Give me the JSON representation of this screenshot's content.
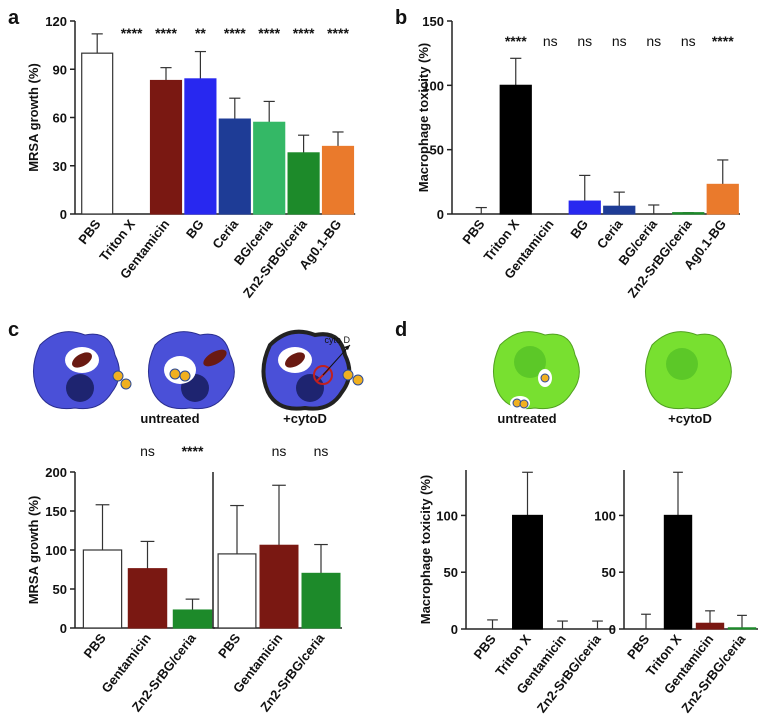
{
  "chart_data": [
    {
      "type": "bar",
      "panel": "a",
      "ylabel": "MRSA growth (%)",
      "categories": [
        "PBS",
        "Triton X",
        "Gentamicin",
        "BG",
        "Ceria",
        "BG/ceria",
        "Zn2-SrBG/ceria",
        "Ag0.1-BG"
      ],
      "values": [
        100,
        0,
        83,
        84,
        59,
        57,
        38,
        42
      ],
      "errors": [
        12,
        0,
        8,
        17,
        13,
        13,
        11,
        9
      ],
      "colors": [
        "#ffffff",
        "#000000",
        "#7a1812",
        "#2828f0",
        "#1e3c96",
        "#34b866",
        "#1d8a2a",
        "#ea7a2c"
      ],
      "annotations": [
        null,
        "****",
        "****",
        "**",
        "****",
        "****",
        "****",
        "****"
      ],
      "ylim": [
        0,
        120
      ],
      "yticks": [
        0,
        30,
        60,
        90,
        120
      ]
    },
    {
      "type": "bar",
      "panel": "b",
      "ylabel": "Macrophage toxicity (%)",
      "categories": [
        "PBS",
        "Triton X",
        "Gentamicin",
        "BG",
        "Ceria",
        "BG/ceria",
        "Zn2-SrBG/ceria",
        "Ag0.1-BG"
      ],
      "values": [
        0,
        100,
        0,
        10,
        6,
        0,
        1,
        23
      ],
      "errors": [
        5,
        21,
        0,
        20,
        11,
        7,
        0,
        19
      ],
      "colors": [
        "#ffffff",
        "#000000",
        "#7a1812",
        "#2828f0",
        "#1e3c96",
        "#34b866",
        "#1d8a2a",
        "#ea7a2c"
      ],
      "annotations": [
        null,
        "****",
        "ns",
        "ns",
        "ns",
        "ns",
        "ns",
        "****"
      ],
      "ylim": [
        0,
        150
      ],
      "yticks": [
        0,
        50,
        100,
        150
      ]
    },
    {
      "type": "bar",
      "panel": "c",
      "title": "untreated",
      "ylabel": "MRSA growth (%)",
      "categories": [
        "PBS",
        "Gentamicin",
        "Zn2-SrBG/ceria"
      ],
      "values": [
        100,
        76,
        23
      ],
      "errors": [
        58,
        35,
        14
      ],
      "colors": [
        "#ffffff",
        "#7a1812",
        "#1d8a2a"
      ],
      "annotations": [
        null,
        "ns",
        "****"
      ],
      "ylim": [
        0,
        200
      ],
      "yticks": [
        0,
        50,
        100,
        150,
        200
      ]
    },
    {
      "type": "bar",
      "title": "+cytoD",
      "annotation": "cyto D",
      "categories": [
        "PBS",
        "Gentamicin",
        "Zn2-SrBG/ceria"
      ],
      "values": [
        95,
        106,
        70
      ],
      "errors": [
        62,
        77,
        37
      ],
      "colors": [
        "#ffffff",
        "#7a1812",
        "#1d8a2a"
      ],
      "annotations": [
        null,
        "ns",
        "ns"
      ],
      "ylim": [
        0,
        200
      ]
    },
    {
      "type": "bar",
      "panel": "d",
      "title": "untreated",
      "ylabel": "Macrophage toxicity (%)",
      "categories": [
        "PBS",
        "Triton X",
        "Gentamicin",
        "Zn2-SrBG/ceria"
      ],
      "values": [
        0,
        100,
        0,
        0
      ],
      "errors": [
        8,
        38,
        7,
        7
      ],
      "colors": [
        "#ffffff",
        "#000000",
        "#7a1812",
        "#1d8a2a"
      ],
      "ylim": [
        0,
        140
      ],
      "yticks": [
        0,
        50,
        100
      ]
    },
    {
      "type": "bar",
      "title": "+cytoD",
      "categories": [
        "PBS",
        "Triton X",
        "Gentamicin",
        "Zn2-SrBG/ceria"
      ],
      "values": [
        0,
        100,
        5,
        1
      ],
      "errors": [
        13,
        38,
        11,
        11
      ],
      "colors": [
        "#ffffff",
        "#000000",
        "#7a1812",
        "#1d8a2a"
      ],
      "ylim": [
        0,
        140
      ],
      "yticks": [
        0,
        50,
        100
      ]
    }
  ]
}
